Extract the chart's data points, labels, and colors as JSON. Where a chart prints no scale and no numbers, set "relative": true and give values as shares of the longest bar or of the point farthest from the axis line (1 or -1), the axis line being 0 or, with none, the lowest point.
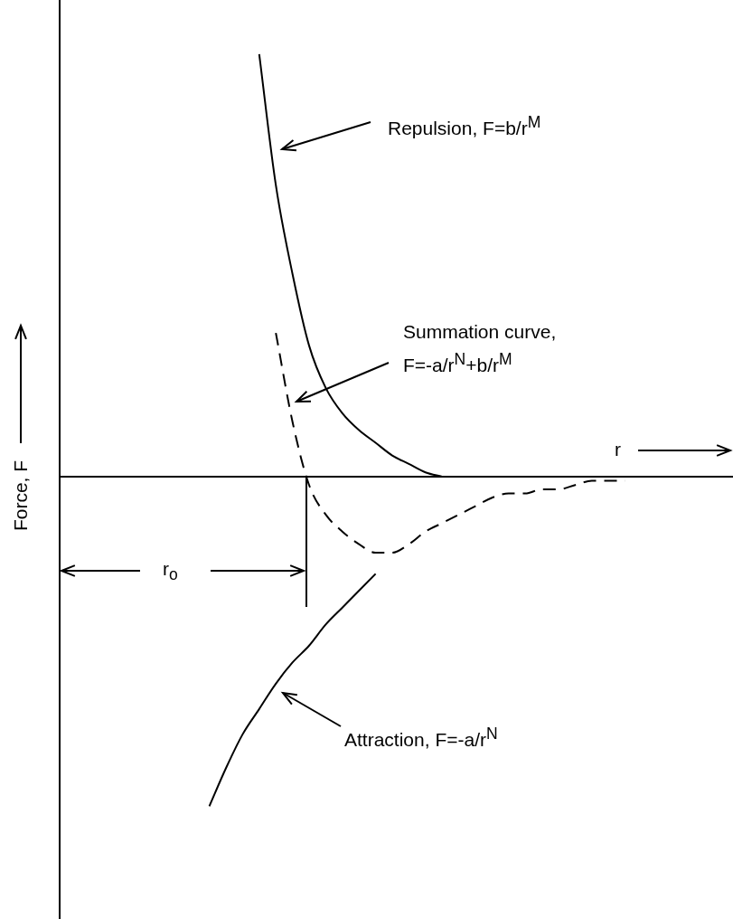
{
  "chart_data": {
    "type": "line",
    "relative": true,
    "marker": "none",
    "xlabel": "r",
    "ylabel": "Force, F",
    "categories": [
      null,
      null,
      null,
      null,
      null,
      null,
      null,
      null,
      null,
      null,
      null,
      null,
      null,
      null,
      null,
      null,
      null,
      null,
      null,
      null,
      null,
      null,
      null,
      null,
      null,
      null,
      null,
      null,
      null,
      null,
      null,
      null,
      null,
      null,
      null,
      null,
      null,
      null,
      null,
      null,
      null
    ],
    "series": [
      {
        "color": "#000000",
        "line_style": "solid",
        "values": [
          null,
          null,
          null,
          null,
          null,
          null,
          null,
          null,
          null,
          null,
          null,
          null,
          1.0,
          0.69,
          0.48,
          0.31,
          0.21,
          0.15,
          0.11,
          0.08,
          0.05,
          0.03,
          0.01,
          0.0,
          null,
          null,
          null,
          null,
          null,
          null,
          null,
          null,
          null,
          null,
          null,
          null,
          null,
          null,
          null,
          null,
          null
        ]
      },
      {
        "color": "#000000",
        "line_style": "dashed",
        "values": [
          null,
          null,
          null,
          null,
          null,
          null,
          null,
          null,
          null,
          null,
          null,
          null,
          null,
          0.34,
          0.13,
          -0.02,
          -0.09,
          -0.13,
          -0.16,
          -0.18,
          -0.18,
          -0.16,
          -0.13,
          -0.11,
          -0.09,
          -0.07,
          -0.05,
          -0.04,
          -0.04,
          -0.03,
          -0.03,
          -0.02,
          -0.01,
          -0.01,
          -0.01,
          null,
          null,
          null,
          null,
          null,
          null
        ]
      },
      {
        "color": "#000000",
        "line_style": "solid",
        "values": [
          null,
          null,
          null,
          null,
          null,
          null,
          null,
          null,
          null,
          -0.78,
          -0.69,
          -0.61,
          -0.55,
          -0.49,
          -0.44,
          -0.4,
          -0.35,
          -0.31,
          -0.27,
          -0.23,
          null,
          null,
          null,
          null,
          null,
          null,
          null,
          null,
          null,
          null,
          null,
          null,
          null,
          null,
          null,
          null,
          null,
          null,
          null,
          null,
          null
        ]
      }
    ],
    "annotations": [
      "Repulsion, F=b/r$^{M}$",
      "Summation curve, F=-a/r$^{N}$+b/r$^{M}$",
      "Attraction, F=-a/r$^{N}$",
      "r$_{o}$"
    ]
  }
}
